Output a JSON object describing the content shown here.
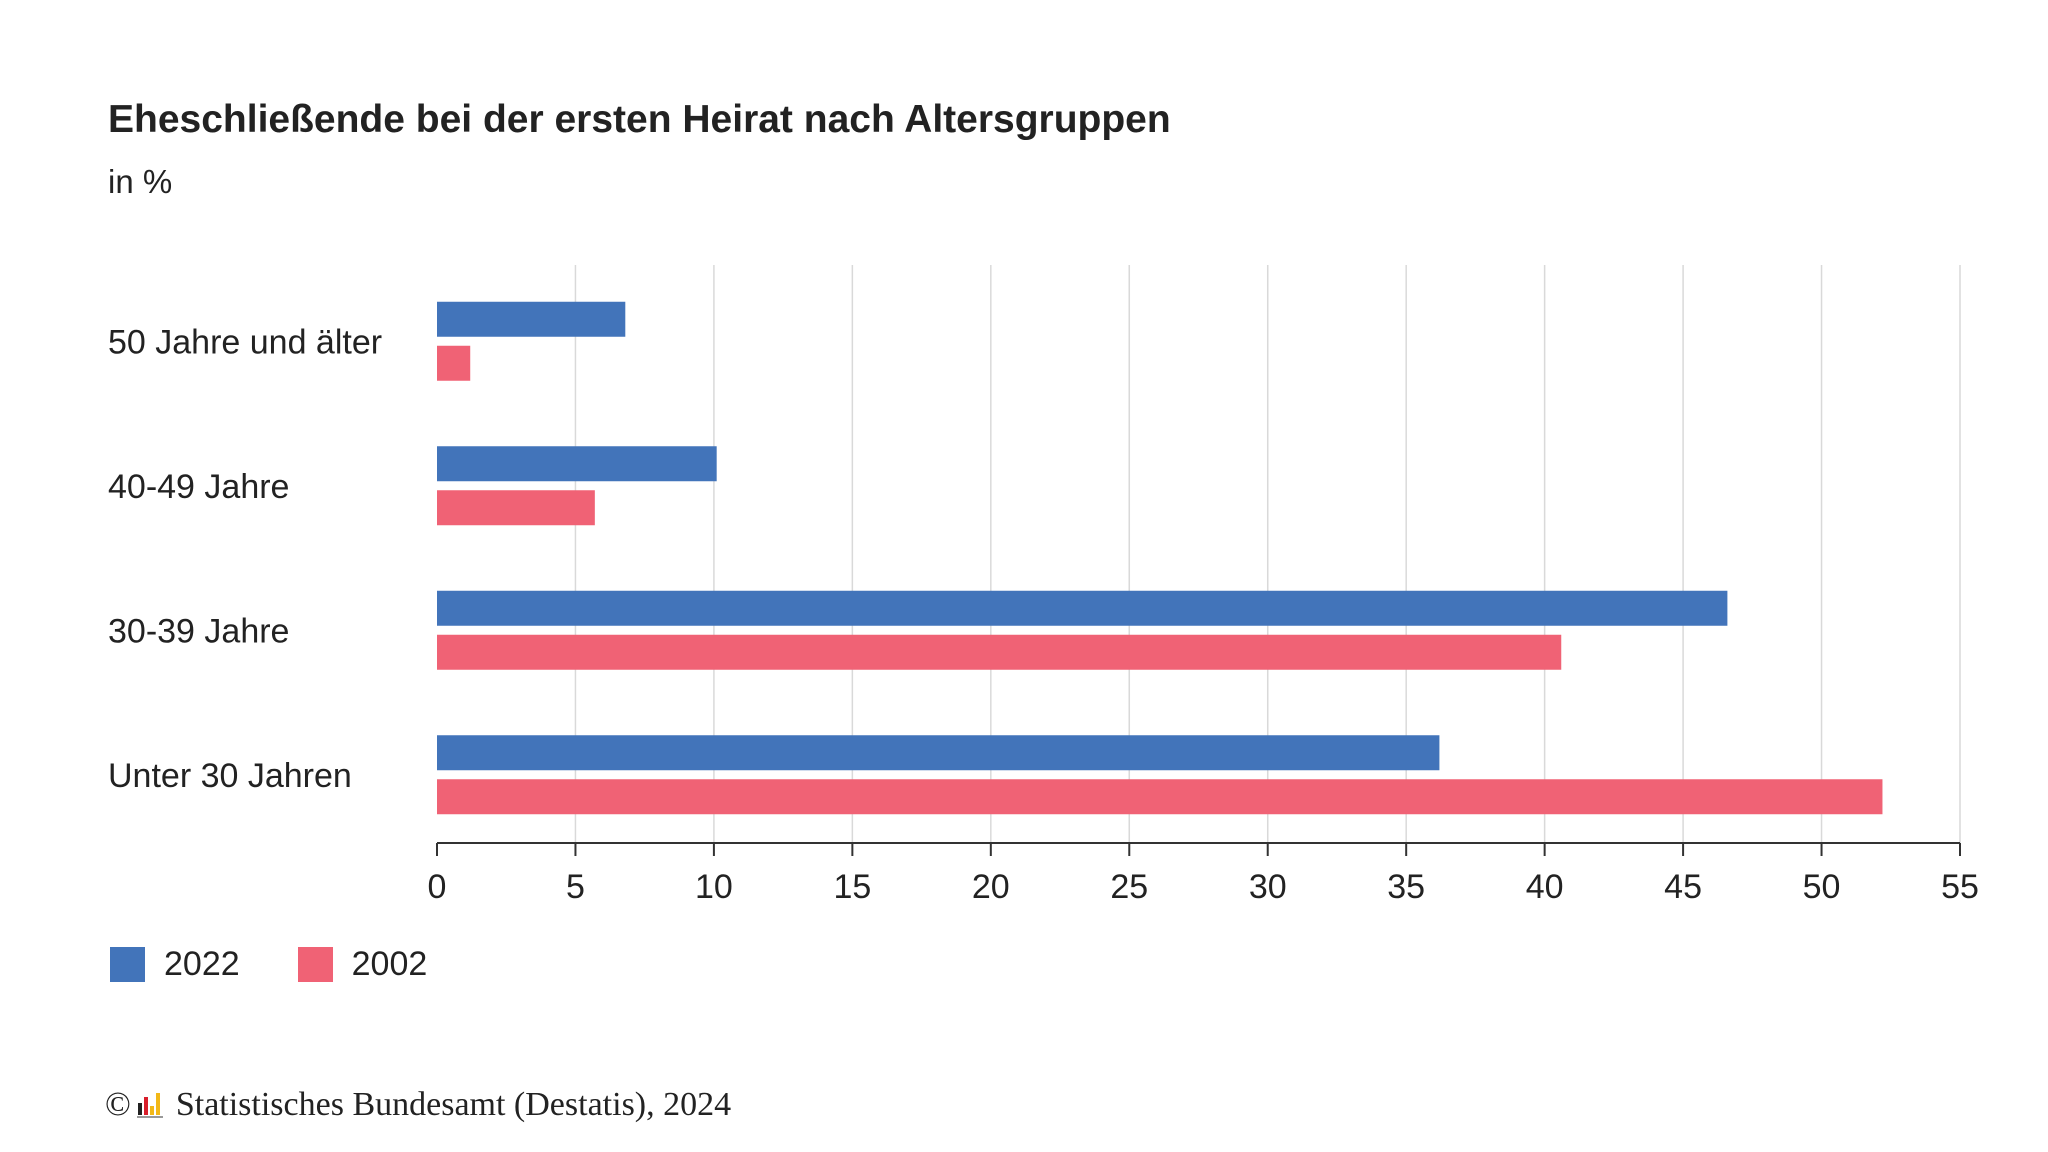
{
  "title": "Eheschließende bei der ersten Heirat nach Altersgruppen",
  "subtitle": "in %",
  "source": {
    "copyright_symbol": "©",
    "text": "Statistisches Bundesamt (Destatis), 2024",
    "logo_icon": "destatis-logo-icon"
  },
  "colors": {
    "series_2022": "#4274ba",
    "series_2002": "#f06275",
    "grid": "#d9d9d9",
    "axis": "#333333"
  },
  "chart_data": {
    "type": "bar",
    "orientation": "horizontal",
    "categories": [
      "50 Jahre und älter",
      "40-49 Jahre",
      "30-39 Jahre",
      "Unter 30 Jahren"
    ],
    "series": [
      {
        "name": "2022",
        "values": [
          6.8,
          10.1,
          46.6,
          36.2
        ]
      },
      {
        "name": "2002",
        "values": [
          1.2,
          5.7,
          40.6,
          52.2
        ]
      }
    ],
    "xlim": [
      0,
      55
    ],
    "xticks": [
      0,
      5,
      10,
      15,
      20,
      25,
      30,
      35,
      40,
      45,
      50,
      55
    ],
    "xlabel": "",
    "ylabel": "",
    "grid": true,
    "legend_position": "bottom-left"
  }
}
